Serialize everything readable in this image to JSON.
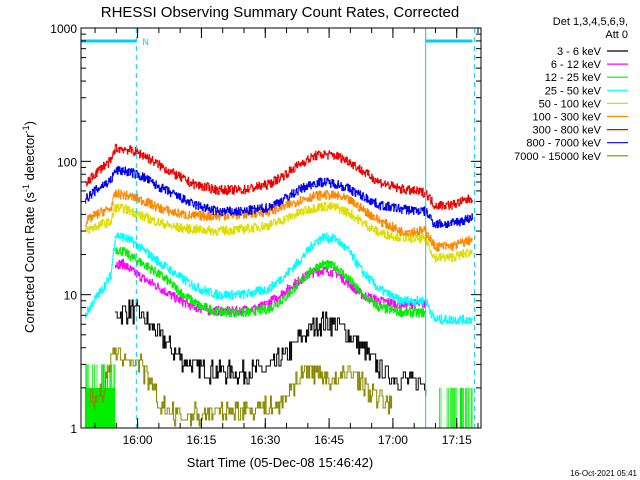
{
  "chart_data": {
    "type": "line",
    "title": "RHESSI Observing Summary Count Rates, Corrected",
    "xlabel": "Start Time (05-Dec-08 15:46:42)",
    "ylabel_main": "Corrected Count Rate (s",
    "ylabel_sup1": "-1",
    "ylabel_mid": " detector",
    "ylabel_sup2": "-1",
    "ylabel_end": ")",
    "footer": "16-Oct-2021 05:41",
    "y_scale": "log",
    "ylim": [
      1,
      1000
    ],
    "xlim_minutes": [
      0,
      94
    ],
    "y_ticks": [
      {
        "value": 1,
        "label": "1"
      },
      {
        "value": 10,
        "label": "10"
      },
      {
        "value": 100,
        "label": "100"
      },
      {
        "value": 1000,
        "label": "1000"
      }
    ],
    "x_ticks": [
      {
        "minute": 13.3,
        "label": "16:00"
      },
      {
        "minute": 28.3,
        "label": "16:15"
      },
      {
        "minute": 43.3,
        "label": "16:30"
      },
      {
        "minute": 58.3,
        "label": "16:45"
      },
      {
        "minute": 73.3,
        "label": "17:00"
      },
      {
        "minute": 88.3,
        "label": "17:15"
      }
    ],
    "legend": {
      "header_line1": "Det 1,3,4,5,6,9,",
      "header_line2": "Att 0",
      "placement": "outside-right"
    },
    "annotations": {
      "night_marker": "N"
    },
    "series": [
      {
        "name": "3 - 6 keV",
        "color": "#000000",
        "points": [
          [
            8,
            7
          ],
          [
            10,
            7.5
          ],
          [
            12,
            7.5
          ],
          [
            14,
            7
          ],
          [
            16,
            6
          ],
          [
            18,
            5
          ],
          [
            21,
            4
          ],
          [
            24,
            3.2
          ],
          [
            28,
            2.8
          ],
          [
            32,
            2.6
          ],
          [
            38,
            2.6
          ],
          [
            44,
            2.8
          ],
          [
            48,
            3.5
          ],
          [
            51,
            4.5
          ],
          [
            54,
            5.5
          ],
          [
            57,
            6.3
          ],
          [
            60,
            6
          ],
          [
            63,
            5
          ],
          [
            66,
            4
          ],
          [
            69,
            3
          ],
          [
            72,
            2.5
          ],
          [
            76,
            2.3
          ],
          [
            79,
            2.2
          ],
          [
            81,
            2.1
          ]
        ]
      },
      {
        "name": "6 - 12 keV",
        "color": "#ff00ff",
        "points": [
          [
            8,
            17
          ],
          [
            10,
            17
          ],
          [
            12,
            15
          ],
          [
            15,
            13
          ],
          [
            18,
            11.5
          ],
          [
            22,
            9.5
          ],
          [
            26,
            8.2
          ],
          [
            30,
            7.6
          ],
          [
            36,
            7.5
          ],
          [
            42,
            8
          ],
          [
            46,
            9.5
          ],
          [
            50,
            12
          ],
          [
            54,
            14.5
          ],
          [
            57,
            15.3
          ],
          [
            60,
            14.5
          ],
          [
            63,
            12
          ],
          [
            66,
            10
          ],
          [
            70,
            9
          ],
          [
            75,
            8.5
          ],
          [
            81,
            8.5
          ]
        ]
      },
      {
        "name": "12 - 25 keV",
        "color": "#00ee00",
        "points": [
          [
            8,
            22
          ],
          [
            10,
            21
          ],
          [
            12,
            19
          ],
          [
            16,
            16
          ],
          [
            20,
            13
          ],
          [
            24,
            10
          ],
          [
            28,
            8.2
          ],
          [
            32,
            7.5
          ],
          [
            38,
            7.3
          ],
          [
            44,
            7.8
          ],
          [
            48,
            9.5
          ],
          [
            52,
            13
          ],
          [
            55,
            16
          ],
          [
            57,
            17
          ],
          [
            60,
            16
          ],
          [
            63,
            13
          ],
          [
            66,
            10
          ],
          [
            70,
            8
          ],
          [
            75,
            7.4
          ],
          [
            81,
            7.3
          ]
        ]
      },
      {
        "name": "25 - 50 keV",
        "color": "#00ffff",
        "points": [
          [
            1,
            7
          ],
          [
            3,
            9
          ],
          [
            5,
            11
          ],
          [
            7,
            14
          ],
          [
            8,
            28
          ],
          [
            10,
            27
          ],
          [
            12,
            25
          ],
          [
            16,
            20
          ],
          [
            20,
            16
          ],
          [
            24,
            13
          ],
          [
            28,
            11
          ],
          [
            32,
            10
          ],
          [
            38,
            10
          ],
          [
            44,
            11
          ],
          [
            48,
            14
          ],
          [
            52,
            19
          ],
          [
            55,
            25
          ],
          [
            57,
            27
          ],
          [
            60,
            26
          ],
          [
            63,
            21
          ],
          [
            66,
            15
          ],
          [
            70,
            11
          ],
          [
            75,
            9
          ],
          [
            81,
            9
          ],
          [
            83,
            6.5
          ],
          [
            87,
            6.5
          ],
          [
            92,
            6.5
          ]
        ]
      },
      {
        "name": "50 - 100 keV",
        "color": "#dddd00",
        "points": [
          [
            1,
            30
          ],
          [
            3,
            32
          ],
          [
            5,
            34
          ],
          [
            7,
            35
          ],
          [
            8,
            45
          ],
          [
            10,
            44
          ],
          [
            12,
            42
          ],
          [
            15,
            38
          ],
          [
            18,
            35
          ],
          [
            22,
            32
          ],
          [
            26,
            31
          ],
          [
            32,
            30
          ],
          [
            38,
            31
          ],
          [
            44,
            33
          ],
          [
            48,
            37
          ],
          [
            52,
            42
          ],
          [
            55,
            45
          ],
          [
            57,
            46
          ],
          [
            60,
            45
          ],
          [
            63,
            41
          ],
          [
            66,
            35
          ],
          [
            70,
            29
          ],
          [
            75,
            27
          ],
          [
            81,
            26
          ],
          [
            83,
            19
          ],
          [
            87,
            19
          ],
          [
            92,
            21
          ]
        ]
      },
      {
        "name": "100 - 300 keV",
        "color": "#ff8800",
        "points": [
          [
            1,
            35
          ],
          [
            3,
            39
          ],
          [
            5,
            42
          ],
          [
            7,
            44
          ],
          [
            8,
            57
          ],
          [
            10,
            56
          ],
          [
            12,
            54
          ],
          [
            15,
            50
          ],
          [
            18,
            45
          ],
          [
            22,
            41
          ],
          [
            26,
            39
          ],
          [
            32,
            39
          ],
          [
            38,
            40
          ],
          [
            44,
            42
          ],
          [
            48,
            46
          ],
          [
            52,
            52
          ],
          [
            55,
            55
          ],
          [
            57,
            56
          ],
          [
            60,
            55
          ],
          [
            63,
            51
          ],
          [
            66,
            44
          ],
          [
            70,
            36
          ],
          [
            75,
            30
          ],
          [
            81,
            30
          ],
          [
            83,
            23
          ],
          [
            87,
            23
          ],
          [
            92,
            26
          ]
        ]
      },
      {
        "name": "300 - 800 keV",
        "color": "#ee0000",
        "points": [
          [
            1,
            66
          ],
          [
            3,
            79
          ],
          [
            5,
            91
          ],
          [
            7,
            100
          ],
          [
            8,
            125
          ],
          [
            10,
            124
          ],
          [
            12,
            120
          ],
          [
            15,
            110
          ],
          [
            18,
            95
          ],
          [
            22,
            80
          ],
          [
            26,
            68
          ],
          [
            32,
            61
          ],
          [
            38,
            61
          ],
          [
            44,
            67
          ],
          [
            48,
            80
          ],
          [
            52,
            98
          ],
          [
            55,
            110
          ],
          [
            57,
            113
          ],
          [
            60,
            110
          ],
          [
            63,
            100
          ],
          [
            66,
            85
          ],
          [
            70,
            70
          ],
          [
            75,
            62
          ],
          [
            81,
            58
          ],
          [
            83,
            47
          ],
          [
            87,
            47
          ],
          [
            92,
            53
          ]
        ]
      },
      {
        "name": "800 - 7000 keV",
        "color": "#0000ee",
        "points": [
          [
            1,
            52
          ],
          [
            3,
            59
          ],
          [
            5,
            66
          ],
          [
            7,
            72
          ],
          [
            8,
            85
          ],
          [
            10,
            85
          ],
          [
            12,
            82
          ],
          [
            15,
            75
          ],
          [
            18,
            65
          ],
          [
            22,
            56
          ],
          [
            26,
            48
          ],
          [
            32,
            42
          ],
          [
            38,
            42
          ],
          [
            44,
            45
          ],
          [
            48,
            53
          ],
          [
            52,
            63
          ],
          [
            55,
            69
          ],
          [
            57,
            70
          ],
          [
            60,
            68
          ],
          [
            63,
            62
          ],
          [
            66,
            55
          ],
          [
            70,
            47
          ],
          [
            75,
            44
          ],
          [
            81,
            42
          ],
          [
            83,
            34
          ],
          [
            87,
            34
          ],
          [
            92,
            38
          ]
        ]
      },
      {
        "name": "7000 - 15000 keV",
        "color": "#888800",
        "points": [
          [
            2,
            1.8
          ],
          [
            3,
            1.6
          ],
          [
            4,
            1.9
          ],
          [
            5,
            1.7
          ],
          [
            6,
            2.4
          ],
          [
            7,
            3.2
          ],
          [
            8,
            3.5
          ],
          [
            10,
            3.4
          ],
          [
            12,
            3.2
          ],
          [
            14,
            2.9
          ],
          [
            16,
            2.2
          ],
          [
            18,
            1.6
          ],
          [
            20,
            1.4
          ],
          [
            22,
            1.2
          ],
          [
            47,
            1.5
          ],
          [
            49,
            1.9
          ],
          [
            51,
            2.4
          ],
          [
            53,
            2.7
          ],
          [
            55,
            2.6
          ],
          [
            57,
            2.5
          ],
          [
            59,
            2.2
          ],
          [
            61,
            2.3
          ],
          [
            63,
            2.8
          ],
          [
            65,
            2.4
          ],
          [
            67,
            2
          ],
          [
            69,
            1.7
          ],
          [
            71,
            1.6
          ],
          [
            73,
            1.5
          ]
        ]
      }
    ],
    "noise_bands": [
      {
        "color": "#00ee00",
        "minute_range": [
          1,
          8
        ],
        "levels": [
          2,
          3
        ]
      },
      {
        "color": "#00ee00",
        "minute_range": [
          84,
          92
        ],
        "levels": [
          1,
          2
        ]
      }
    ],
    "attenuator_bars": [
      {
        "minute_range": [
          0,
          13
        ]
      },
      {
        "minute_range": [
          81,
          92
        ]
      }
    ],
    "vertical_markers": [
      {
        "minute": 0,
        "style": "solid"
      },
      {
        "minute": 13,
        "style": "dashed"
      },
      {
        "minute": 81,
        "style": "solid"
      },
      {
        "minute": 92.5,
        "style": "dashed"
      }
    ],
    "marker_color": "#00ccff",
    "grid": false
  }
}
